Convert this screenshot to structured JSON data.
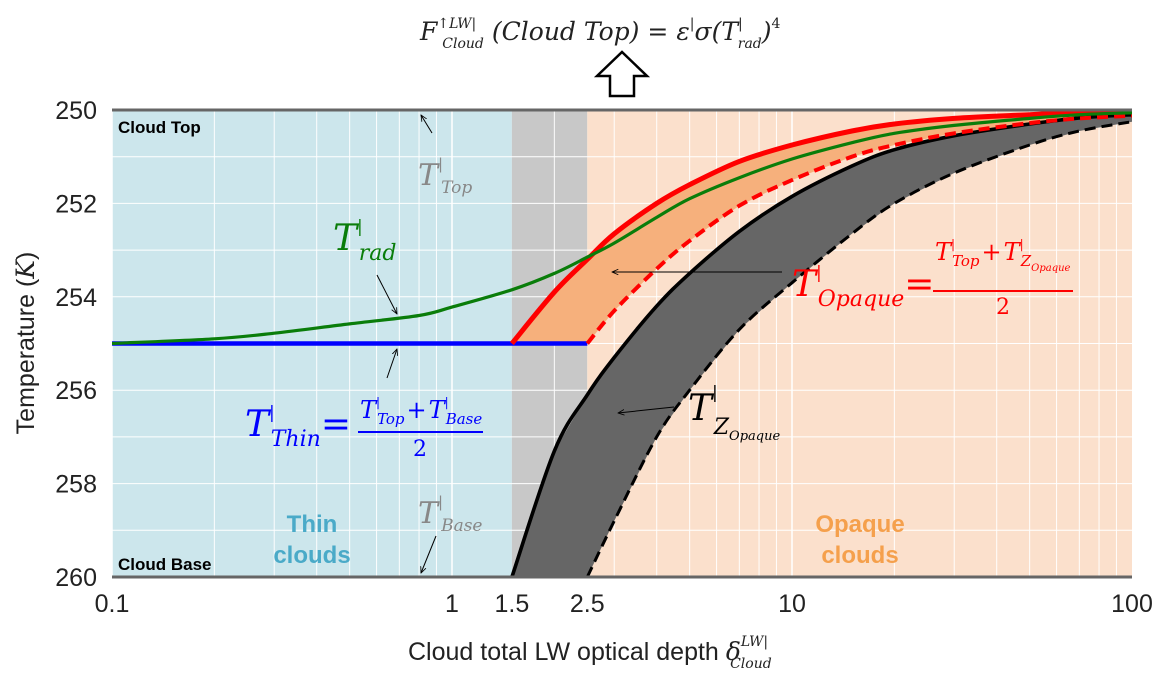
{
  "chart_data": {
    "type": "line",
    "xlabel": "Cloud total LW optical depth",
    "xlabel_symbol": "δ",
    "xlabel_sup": "LW|",
    "xlabel_sub": "Cloud",
    "ylabel": "Temperature (",
    "ylabel_unit": "K",
    "ylabel_close": ")",
    "xscale": "log",
    "xlim": [
      0.1,
      100
    ],
    "ylim": [
      260,
      250
    ],
    "x_ticks": [
      {
        "value": 0.1,
        "label": "0.1"
      },
      {
        "value": 1,
        "label": "1"
      },
      {
        "value": 1.5,
        "label": "1.5"
      },
      {
        "value": 2.5,
        "label": "2.5"
      },
      {
        "value": 10,
        "label": "10"
      },
      {
        "value": 100,
        "label": "100"
      }
    ],
    "y_ticks": [
      {
        "value": 250,
        "label": "250"
      },
      {
        "value": 252,
        "label": "252"
      },
      {
        "value": 254,
        "label": "254"
      },
      {
        "value": 256,
        "label": "256"
      },
      {
        "value": 258,
        "label": "258"
      },
      {
        "value": 260,
        "label": "260"
      }
    ],
    "grid": true,
    "regions": [
      {
        "name": "Thin clouds",
        "x_range": [
          0.1,
          1.5
        ],
        "color": "#cce6ec"
      },
      {
        "name": "transition",
        "x_range": [
          1.5,
          2.5
        ],
        "color": "#c8c8c8"
      },
      {
        "name": "Opaque clouds",
        "x_range": [
          2.5,
          100
        ],
        "color": "#fbe0cc"
      }
    ],
    "series": [
      {
        "name": "T_rad",
        "color": "#0a7d0a",
        "style": "solid",
        "x": [
          0.1,
          0.2,
          0.3,
          0.5,
          0.8,
          1,
          1.5,
          2,
          2.5,
          3,
          4,
          5,
          7,
          10,
          15,
          20,
          30,
          50,
          70,
          100
        ],
        "y": [
          255.0,
          254.9,
          254.78,
          254.58,
          254.4,
          254.22,
          253.85,
          253.5,
          253.15,
          252.85,
          252.3,
          251.9,
          251.45,
          251.05,
          250.7,
          250.5,
          250.33,
          250.18,
          250.1,
          250.06
        ]
      },
      {
        "name": "T_Thin",
        "color": "#0000ff",
        "style": "solid",
        "x": [
          0.1,
          2.5
        ],
        "y": [
          255.0,
          255.0
        ]
      },
      {
        "name": "T_Opaque upper",
        "color": "#ff0000",
        "style": "solid",
        "x": [
          1.5,
          2,
          2.5,
          3,
          4,
          5,
          7,
          10,
          15,
          20,
          30,
          50,
          70,
          100
        ],
        "y": [
          255.0,
          253.9,
          253.2,
          252.65,
          252.0,
          251.6,
          251.1,
          250.75,
          250.45,
          250.3,
          250.18,
          250.1,
          250.05,
          250.03
        ]
      },
      {
        "name": "T_Opaque lower",
        "color": "#ff0000",
        "style": "dashed",
        "x": [
          2.5,
          3,
          4,
          5,
          7,
          10,
          15,
          20,
          30,
          50,
          70,
          100
        ],
        "y": [
          255.0,
          254.3,
          253.4,
          252.8,
          252.05,
          251.5,
          251.0,
          250.75,
          250.5,
          250.28,
          250.18,
          250.12
        ]
      },
      {
        "name": "Z_Opaque upper",
        "color": "#000000",
        "style": "solid",
        "x": [
          1.5,
          2,
          2.5,
          3,
          4,
          5,
          7,
          10,
          15,
          20,
          30,
          50,
          70,
          100
        ],
        "y": [
          260.0,
          257.3,
          256.1,
          255.3,
          254.2,
          253.5,
          252.6,
          251.85,
          251.2,
          250.85,
          250.55,
          250.3,
          250.17,
          250.1
        ]
      },
      {
        "name": "Z_Opaque lower",
        "color": "#000000",
        "style": "dashed",
        "x": [
          2.5,
          3,
          4,
          5,
          7,
          10,
          15,
          20,
          30,
          50,
          70,
          100
        ],
        "y": [
          260.0,
          258.8,
          257.0,
          256.0,
          254.7,
          253.7,
          252.65,
          252.0,
          251.35,
          250.75,
          250.45,
          250.25
        ]
      }
    ],
    "bands": [
      {
        "name": "opaque temperature band",
        "fill": "#f6b07c",
        "upper": "T_Opaque upper",
        "lower": "T_Opaque lower"
      },
      {
        "name": "opaque altitude band",
        "fill": "#666666",
        "upper": "Z_Opaque upper",
        "lower": "Z_Opaque lower"
      }
    ]
  },
  "header_formula": {
    "lhs": "F",
    "lhs_sup": "↑LW|",
    "lhs_sub": "Cloud",
    "arg": "(Cloud Top)",
    "eq": "=",
    "eps": "ε",
    "eps_sup": "|",
    "sigma": "σ(",
    "T": "T",
    "T_sup": "|",
    "T_sub": "rad",
    "close": ")",
    "power": "4"
  },
  "labels": {
    "cloud_top": "Cloud Top",
    "cloud_base": "Cloud Base",
    "thin_clouds": [
      "Thin",
      "clouds"
    ],
    "opaque_clouds": [
      "Opaque",
      "clouds"
    ],
    "thin_color": "#4aaac8",
    "opaque_color": "#f5a04c"
  },
  "annotations": {
    "t_top": {
      "T": "T",
      "sup": "|",
      "sub": "Top",
      "color": "#888888"
    },
    "t_base": {
      "T": "T",
      "sup": "|",
      "sub": "Base",
      "color": "#888888"
    },
    "t_rad": {
      "T": "T",
      "sup": "|",
      "sub": "rad",
      "color": "#0a7d0a"
    },
    "t_thin": {
      "T": "T",
      "sup": "|",
      "sub": "Thin",
      "eq": "=",
      "num_a": "T",
      "num_a_sup": "|",
      "num_a_sub": "Top",
      "plus": "+",
      "num_b": "T",
      "num_b_sup": "|",
      "num_b_sub": "Base",
      "den": "2",
      "color": "#0000ff"
    },
    "t_opaque": {
      "T": "T",
      "sup": "|",
      "sub": "Opaque",
      "eq": "=",
      "num_a": "T",
      "num_a_sup": "|",
      "num_a_sub": "Top",
      "plus": "+",
      "num_b": "T",
      "num_b_sup": "|",
      "num_b_sub": "Z",
      "num_b_subsub": "Opaque",
      "den": "2",
      "color": "#ff0000"
    },
    "t_z_opaque": {
      "T": "T",
      "sup": "|",
      "sub": "Z",
      "subsub": "Opaque",
      "color": "#000000"
    }
  }
}
